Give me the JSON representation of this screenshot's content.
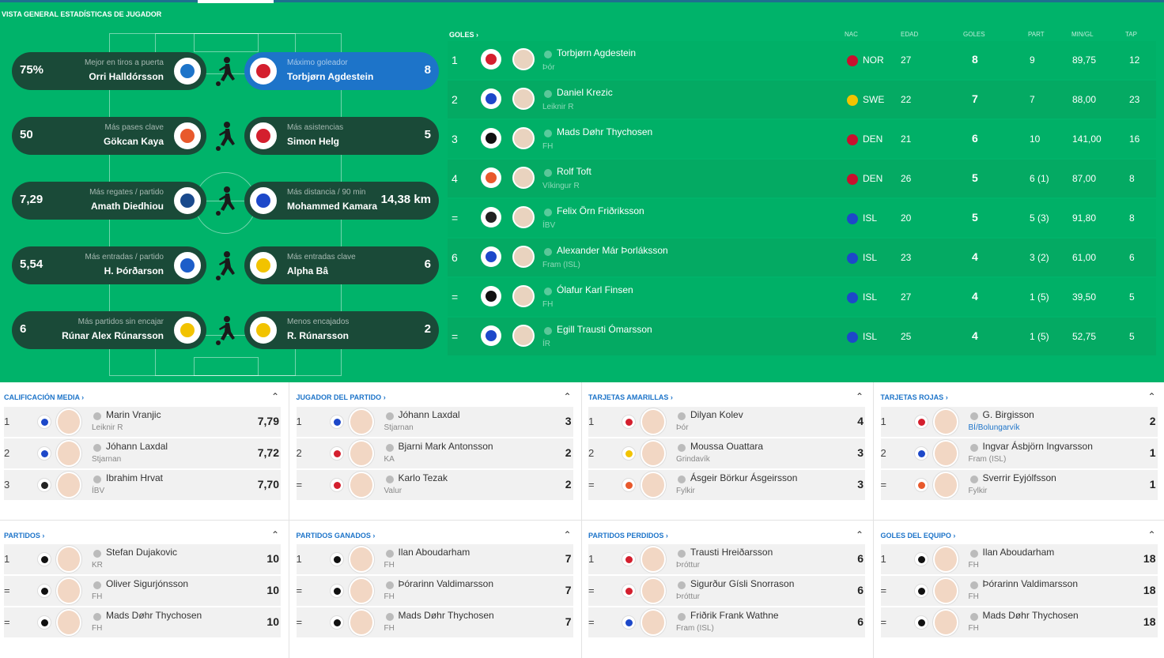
{
  "page": {
    "title": "VISTA GENERAL ESTADÍSTICAS DE JUGADOR"
  },
  "highlights": [
    {
      "value": "75%",
      "caption": "Mejor en tiros a puerta",
      "name": "Orri Halldórsson",
      "crest": "#1d74c9"
    },
    {
      "value": "8",
      "caption": "Máximo goleador",
      "name": "Torbjørn Agdestein",
      "crest": "#d41f2e"
    },
    {
      "value": "50",
      "caption": "Más pases clave",
      "name": "Gökcan Kaya",
      "crest": "#e8592c"
    },
    {
      "value": "5",
      "caption": "Más asistencias",
      "name": "Simon Helg",
      "crest": "#d41f2e"
    },
    {
      "value": "7,29",
      "caption": "Más regates / partido",
      "name": "Amath Diedhiou",
      "crest": "#1a4a8c"
    },
    {
      "value": "14,38 km",
      "caption": "Más distancia / 90 min",
      "name": "Mohammed Kamara",
      "crest": "#1d48c9"
    },
    {
      "value": "5,54",
      "caption": "Más entradas / partido",
      "name": "H. Þórðarson",
      "crest": "#1d5ec9"
    },
    {
      "value": "6",
      "caption": "Más entradas clave",
      "name": "Alpha Bâ",
      "crest": "#f2c300"
    },
    {
      "value": "6",
      "caption": "Más partidos sin encajar",
      "name": "Rúnar Alex Rúnarsson",
      "crest": "#f2c300"
    },
    {
      "value": "2",
      "caption": "Menos encajados",
      "name": "R. Rúnarsson",
      "crest": "#f2c300"
    }
  ],
  "goals": {
    "title": "GOLES",
    "columns": {
      "nat": "NAC",
      "age": "EDAD",
      "goals": "GOLES",
      "apps": "PART",
      "mpg": "MIN/GL",
      "tap": "TAP"
    },
    "rows": [
      {
        "rank": "1",
        "name": "Torbjørn Agdestein",
        "club": "Þór",
        "nat": "NOR",
        "age": "27",
        "goals": "8",
        "apps": "9",
        "mpg": "89,75",
        "tap": "12",
        "crest": "#d41f2e",
        "flag": "#c8102e"
      },
      {
        "rank": "2",
        "name": "Daniel Krezic",
        "club": "Leiknir R",
        "nat": "SWE",
        "age": "22",
        "goals": "7",
        "apps": "7",
        "mpg": "88,00",
        "tap": "23",
        "crest": "#1d48c9",
        "flag": "#f2c300"
      },
      {
        "rank": "3",
        "name": "Mads Døhr Thychosen",
        "club": "FH",
        "nat": "DEN",
        "age": "21",
        "goals": "6",
        "apps": "10",
        "mpg": "141,00",
        "tap": "16",
        "crest": "#111111",
        "flag": "#c8102e"
      },
      {
        "rank": "4",
        "name": "Rolf Toft",
        "club": "Víkingur R",
        "nat": "DEN",
        "age": "26",
        "goals": "5",
        "apps": "6 (1)",
        "mpg": "87,00",
        "tap": "8",
        "crest": "#e8592c",
        "flag": "#c8102e"
      },
      {
        "rank": "=",
        "name": "Felix Örn Friðriksson",
        "club": "ÍBV",
        "nat": "ISL",
        "age": "20",
        "goals": "5",
        "apps": "5 (3)",
        "mpg": "91,80",
        "tap": "8",
        "crest": "#222222",
        "flag": "#1d48c9"
      },
      {
        "rank": "6",
        "name": "Alexander Már Þorláksson",
        "club": "Fram (ISL)",
        "nat": "ISL",
        "age": "23",
        "goals": "4",
        "apps": "3 (2)",
        "mpg": "61,00",
        "tap": "6",
        "crest": "#1d48c9",
        "flag": "#1d48c9"
      },
      {
        "rank": "=",
        "name": "Ólafur Karl Finsen",
        "club": "FH",
        "nat": "ISL",
        "age": "27",
        "goals": "4",
        "apps": "1 (5)",
        "mpg": "39,50",
        "tap": "5",
        "crest": "#111111",
        "flag": "#1d48c9"
      },
      {
        "rank": "=",
        "name": "Egill Trausti Ómarsson",
        "club": "ÍR",
        "nat": "ISL",
        "age": "25",
        "goals": "4",
        "apps": "1 (5)",
        "mpg": "52,75",
        "tap": "5",
        "crest": "#1d48c9",
        "flag": "#1d48c9"
      }
    ]
  },
  "panels": [
    {
      "title": "CALIFICACIÓN MEDIA",
      "rows": [
        {
          "rank": "1",
          "name": "Marin Vranjic",
          "club": "Leiknir R",
          "value": "7,79",
          "crest": "#1d48c9"
        },
        {
          "rank": "2",
          "name": "Jóhann Laxdal",
          "club": "Stjarnan",
          "value": "7,72",
          "crest": "#1d48c9"
        },
        {
          "rank": "3",
          "name": "Ibrahim Hrvat",
          "club": "ÍBV",
          "value": "7,70",
          "crest": "#222222"
        }
      ]
    },
    {
      "title": "JUGADOR DEL PARTIDO",
      "rows": [
        {
          "rank": "1",
          "name": "Jóhann Laxdal",
          "club": "Stjarnan",
          "value": "3",
          "crest": "#1d48c9"
        },
        {
          "rank": "2",
          "name": "Bjarni Mark Antonsson",
          "club": "KA",
          "value": "2",
          "crest": "#d41f2e"
        },
        {
          "rank": "=",
          "name": "Karlo Tezak",
          "club": "Valur",
          "value": "2",
          "crest": "#d41f2e"
        }
      ]
    },
    {
      "title": "TARJETAS AMARILLAS",
      "rows": [
        {
          "rank": "1",
          "name": "Dilyan Kolev",
          "club": "Þór",
          "value": "4",
          "crest": "#d41f2e"
        },
        {
          "rank": "2",
          "name": "Moussa Ouattara",
          "club": "Grindavík",
          "value": "3",
          "crest": "#f2c300"
        },
        {
          "rank": "=",
          "name": "Ásgeir Börkur Ásgeirsson",
          "club": "Fylkir",
          "value": "3",
          "crest": "#e8592c"
        }
      ]
    },
    {
      "title": "TARJETAS ROJAS",
      "rows": [
        {
          "rank": "1",
          "name": "G. Birgisson",
          "club": "BÍ/Bolungarvík",
          "value": "2",
          "crest": "#d41f2e",
          "link": true
        },
        {
          "rank": "2",
          "name": "Ingvar Ásbjörn Ingvarsson",
          "club": "Fram (ISL)",
          "value": "1",
          "crest": "#1d48c9"
        },
        {
          "rank": "=",
          "name": "Sverrir Eyjólfsson",
          "club": "Fylkir",
          "value": "1",
          "crest": "#e8592c"
        }
      ]
    },
    {
      "title": "PARTIDOS",
      "rows": [
        {
          "rank": "1",
          "name": "Stefan Dujakovic",
          "club": "KR",
          "value": "10",
          "crest": "#111111"
        },
        {
          "rank": "=",
          "name": "Oliver Sigurjónsson",
          "club": "FH",
          "value": "10",
          "crest": "#111111"
        },
        {
          "rank": "=",
          "name": "Mads Døhr Thychosen",
          "club": "FH",
          "value": "10",
          "crest": "#111111"
        }
      ]
    },
    {
      "title": "PARTIDOS GANADOS",
      "rows": [
        {
          "rank": "1",
          "name": "Ilan Aboudarham",
          "club": "FH",
          "value": "7",
          "crest": "#111111"
        },
        {
          "rank": "=",
          "name": "Þórarinn Valdimarsson",
          "club": "FH",
          "value": "7",
          "crest": "#111111"
        },
        {
          "rank": "=",
          "name": "Mads Døhr Thychosen",
          "club": "FH",
          "value": "7",
          "crest": "#111111"
        }
      ]
    },
    {
      "title": "PARTIDOS PERDIDOS",
      "rows": [
        {
          "rank": "1",
          "name": "Trausti Hreiðarsson",
          "club": "Þróttur",
          "value": "6",
          "crest": "#d41f2e"
        },
        {
          "rank": "=",
          "name": "Sigurður Gísli Snorrason",
          "club": "Þróttur",
          "value": "6",
          "crest": "#d41f2e"
        },
        {
          "rank": "=",
          "name": "Friðrik Frank Wathne",
          "club": "Fram (ISL)",
          "value": "6",
          "crest": "#1d48c9"
        }
      ]
    },
    {
      "title": "GOLES DEL EQUIPO",
      "rows": [
        {
          "rank": "1",
          "name": "Ilan Aboudarham",
          "club": "FH",
          "value": "18",
          "crest": "#111111"
        },
        {
          "rank": "=",
          "name": "Þórarinn Valdimarsson",
          "club": "FH",
          "value": "18",
          "crest": "#111111"
        },
        {
          "rank": "=",
          "name": "Mads Døhr Thychosen",
          "club": "FH",
          "value": "18",
          "crest": "#111111"
        }
      ]
    }
  ]
}
